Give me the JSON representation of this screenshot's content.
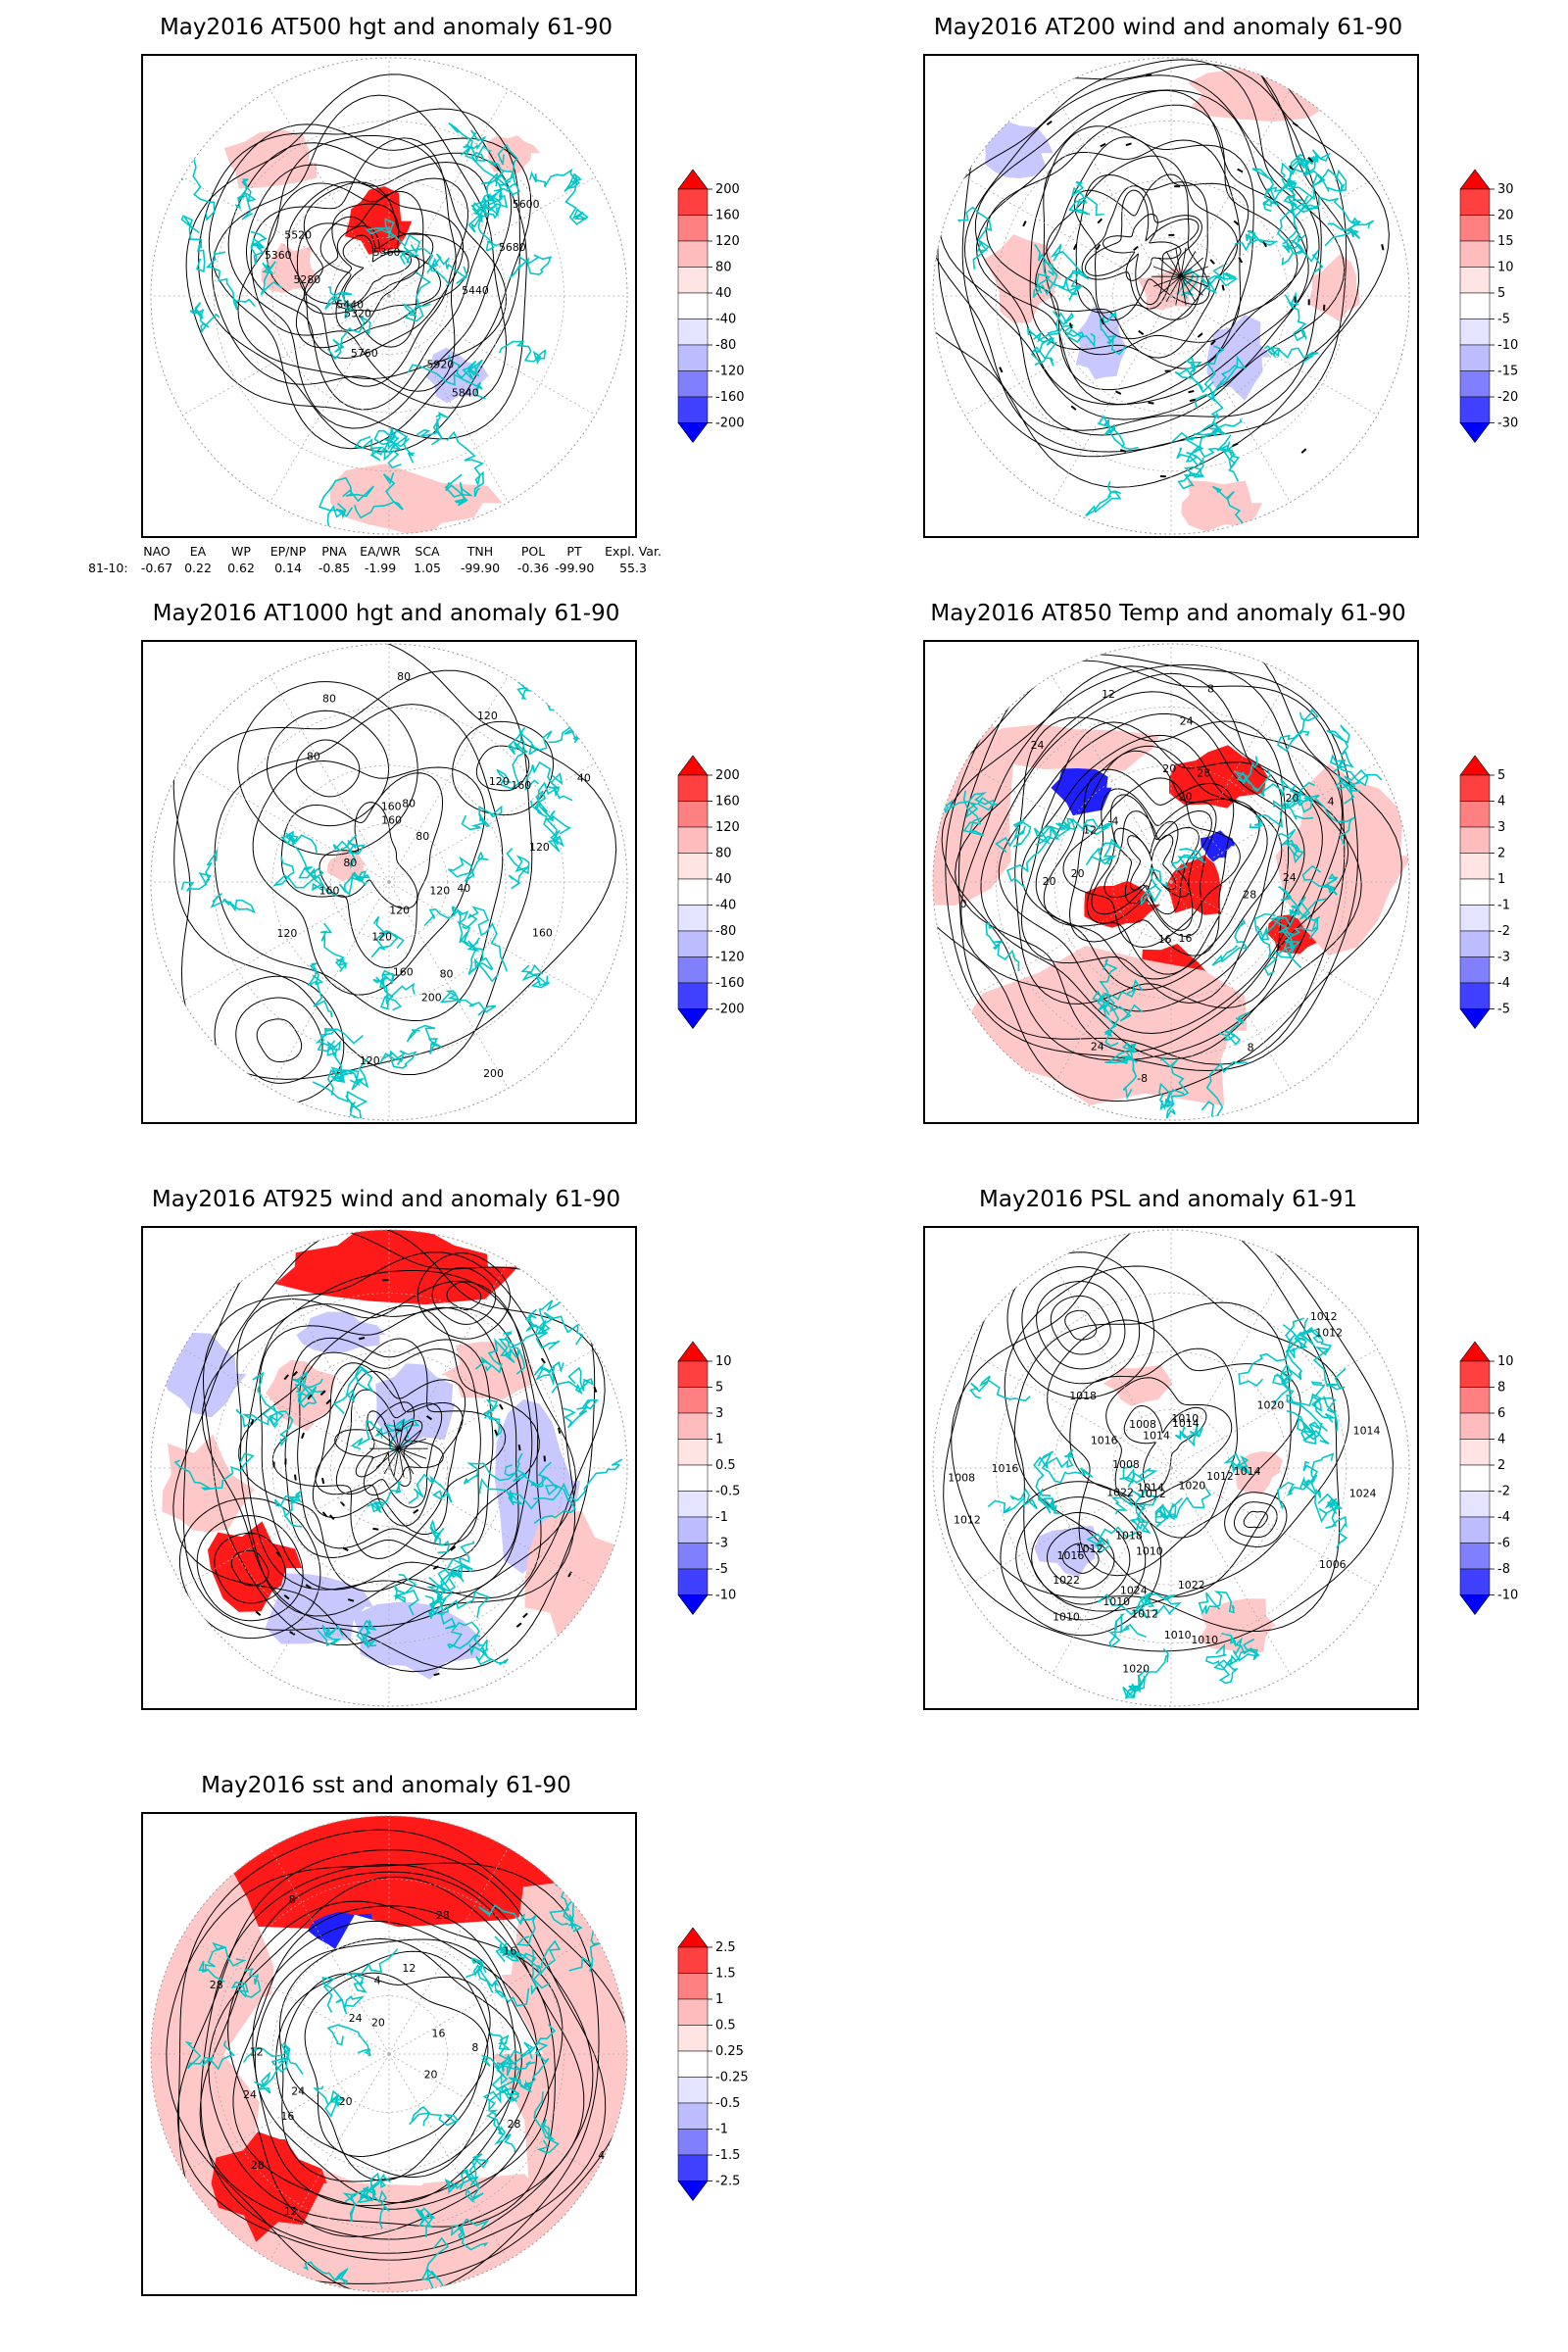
{
  "panels": [
    {
      "id": "at500",
      "title": "May2016 AT500 hgt and anomaly 61-90",
      "colorbar": [
        "200",
        "160",
        "120",
        "80",
        "40",
        "-40",
        "-80",
        "-120",
        "-160",
        "-200"
      ],
      "contour_labels": [
        "5840",
        "5760",
        "5680",
        "5600",
        "5520",
        "5440",
        "5360",
        "5280",
        "5920",
        "5320",
        "5440",
        "5360"
      ]
    },
    {
      "id": "at200",
      "title": "May2016 AT200 wind and anomaly 61-90",
      "colorbar": [
        "30",
        "20",
        "15",
        "10",
        "5",
        "-5",
        "-10",
        "-15",
        "-20",
        "-30"
      ],
      "contour_labels": []
    },
    {
      "id": "at1000",
      "title": "May2016 AT1000 hgt and anomaly 61-90",
      "colorbar": [
        "200",
        "160",
        "120",
        "80",
        "40",
        "-40",
        "-80",
        "-120",
        "-160",
        "-200"
      ],
      "contour_labels": [
        "160",
        "160",
        "120",
        "120",
        "200",
        "80",
        "80",
        "40",
        "120",
        "160",
        "120",
        "80",
        "160",
        "40",
        "160",
        "200",
        "160",
        "120",
        "120",
        "80",
        "80",
        "120",
        "80",
        "120",
        "80"
      ]
    },
    {
      "id": "at850",
      "title": "May2016 AT850 Temp and anomaly 61-90",
      "colorbar": [
        "5",
        "4",
        "3",
        "2",
        "1",
        "-1",
        "-2",
        "-3",
        "-4",
        "-5"
      ],
      "contour_labels": [
        "16",
        "12",
        "8",
        "20",
        "24",
        "20",
        "-8",
        "-4",
        "0",
        "4",
        "20",
        "24",
        "28",
        "8",
        "12",
        "16",
        "20",
        "24",
        "20",
        "28",
        "24"
      ]
    },
    {
      "id": "at925",
      "title": "May2016 AT925 wind and anomaly 61-90",
      "colorbar": [
        "10",
        "5",
        "3",
        "1",
        "0.5",
        "-0.5",
        "-1",
        "-3",
        "-5",
        "-10"
      ],
      "contour_labels": []
    },
    {
      "id": "psl",
      "title": "May2016 PSL and anomaly 61-91",
      "colorbar": [
        "10",
        "8",
        "6",
        "4",
        "2",
        "-2",
        "-4",
        "-6",
        "-8",
        "-10"
      ],
      "contour_labels": [
        "1010",
        "1010",
        "1014",
        "1016",
        "1018",
        "1020",
        "1022",
        "1024",
        "1022",
        "1020",
        "1012",
        "1014",
        "1012",
        "1008",
        "1010",
        "1024",
        "1022",
        "1018",
        "1020",
        "1016",
        "1014",
        "1012",
        "1010",
        "1008",
        "1006",
        "1012",
        "1010",
        "1012",
        "1014",
        "1016",
        "1014",
        "1012",
        "1008",
        "1010",
        "1012"
      ]
    },
    {
      "id": "sst",
      "title": "May2016 sst and anomaly 61-90",
      "colorbar": [
        "2.5",
        "1.5",
        "1",
        "0.5",
        "0.25",
        "-0.25",
        "-0.5",
        "-1",
        "-1.5",
        "-2.5"
      ],
      "contour_labels": [
        "28",
        "28",
        "24",
        "20",
        "16",
        "12",
        "8",
        "4",
        "28",
        "24",
        "20",
        "16",
        "12",
        "8",
        "4",
        "12",
        "16",
        "20",
        "24",
        "28"
      ]
    }
  ],
  "indices": {
    "headers": [
      "NAO",
      "EA",
      "WP",
      "EP/NP",
      "PNA",
      "EA/WR",
      "SCA",
      "TNH",
      "POL",
      "PT",
      "Expl. Var."
    ],
    "row_label": "81-10:",
    "values": [
      "-0.67",
      "0.22",
      "0.62",
      "0.14",
      "-0.85",
      "-1.99",
      "1.05",
      "-99.90",
      "-0.36",
      "-99.90",
      "55.3"
    ]
  },
  "colors": {
    "coast": "#00c8c8",
    "red_strong": "#ff1a1a",
    "red_light": "#ffc8c8",
    "blue_strong": "#2020ff",
    "blue_light": "#c8c8ff",
    "contour": "#000000"
  }
}
